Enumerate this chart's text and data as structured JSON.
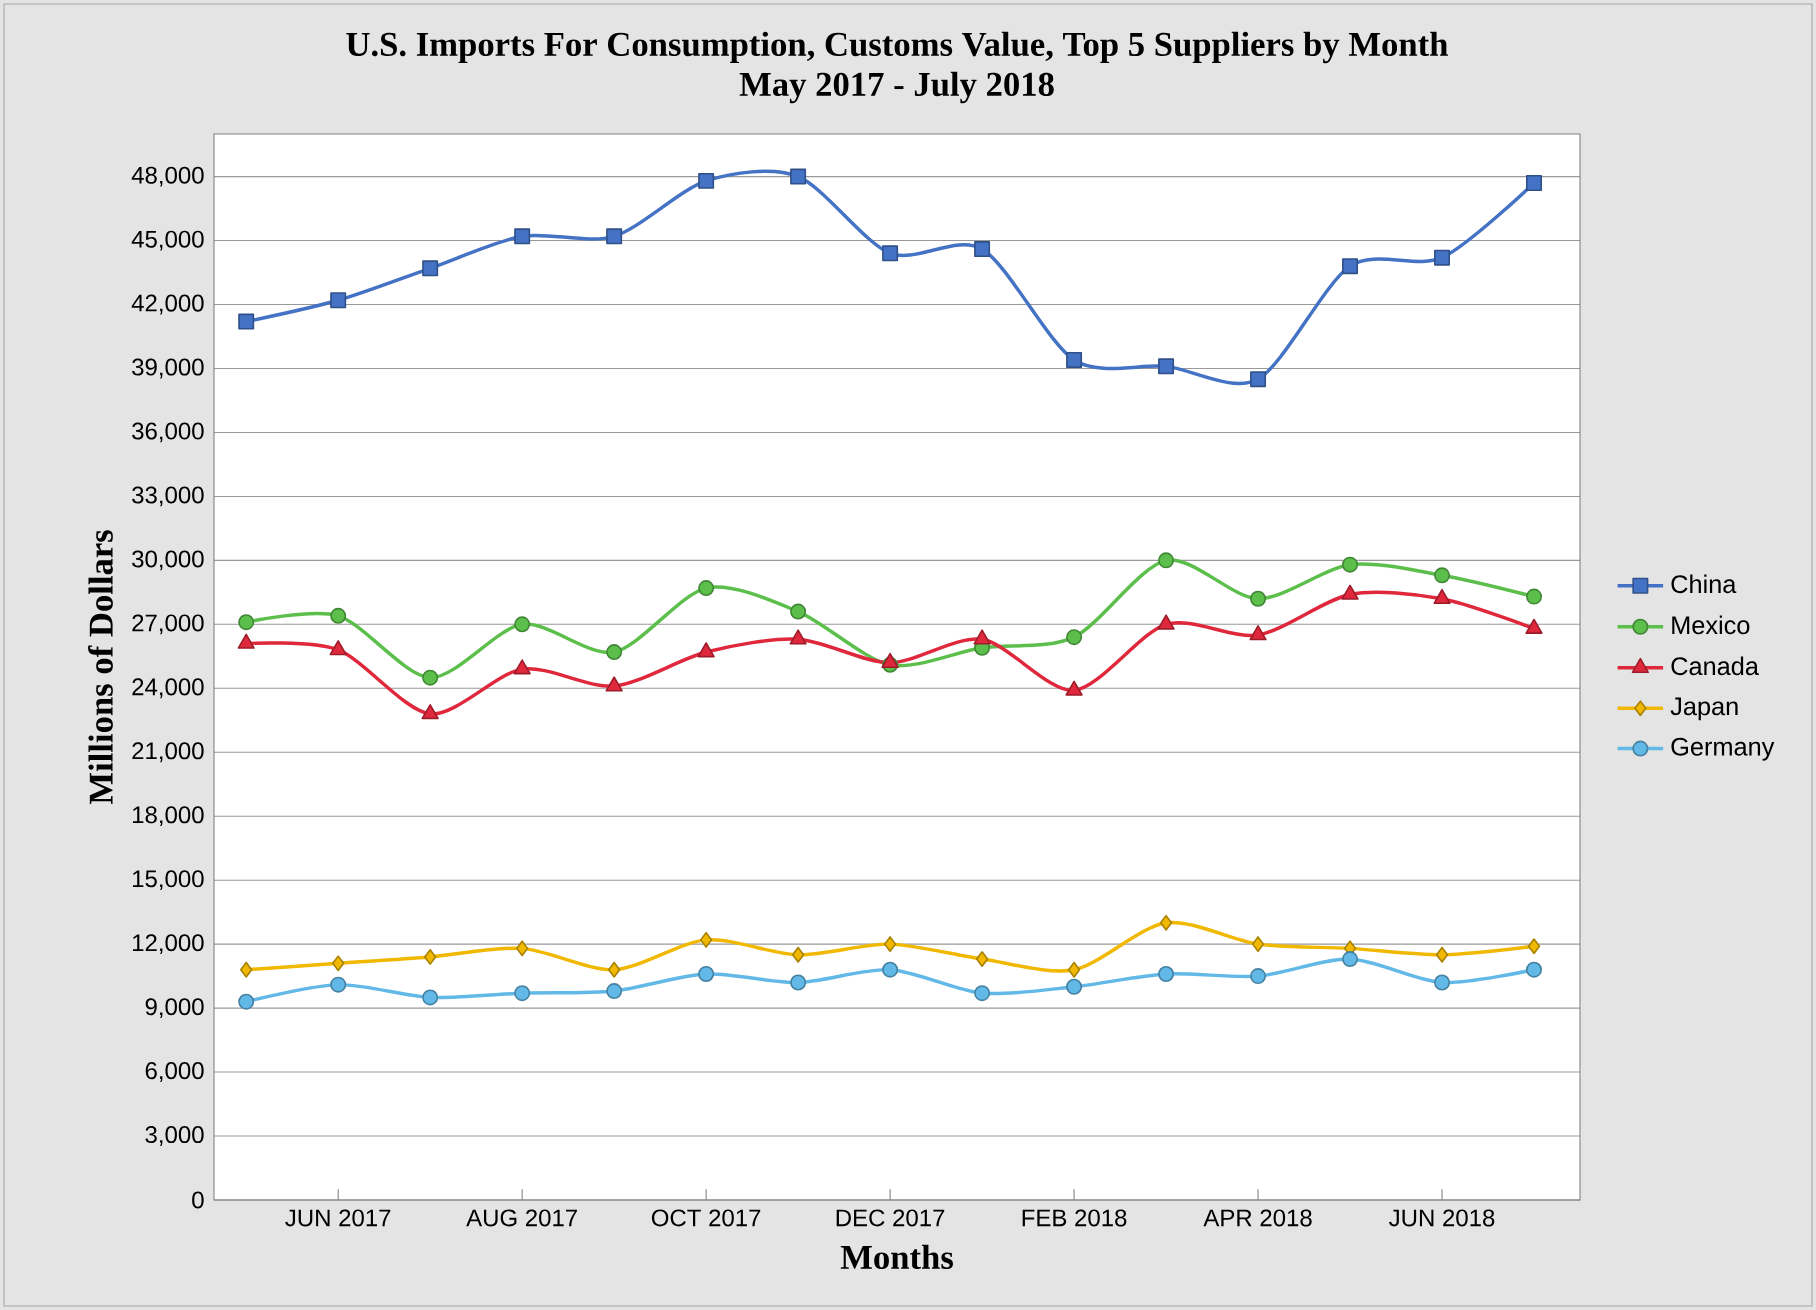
{
  "chart_data": {
    "type": "line",
    "title": "U.S. Imports For Consumption, Customs Value, Top 5 Suppliers by Month",
    "subtitle": "May 2017 - July 2018",
    "xlabel": "Months",
    "ylabel": "Millions of Dollars",
    "categories": [
      null,
      "JUN 2017",
      null,
      "AUG 2017",
      null,
      "OCT 2017",
      null,
      "DEC 2017",
      null,
      "FEB 2018",
      null,
      "APR 2018",
      null,
      "JUN 2018",
      null
    ],
    "ylim": [
      0,
      50000
    ],
    "yticks": [
      0,
      {
        "value": 3000,
        "label": "3,000"
      },
      {
        "value": 6000,
        "label": "6,000"
      },
      {
        "value": 9000,
        "label": "9,000"
      },
      {
        "value": 12000,
        "label": "12,000"
      },
      {
        "value": 15000,
        "label": "15,000"
      },
      {
        "value": 18000,
        "label": "18,000"
      },
      {
        "value": 21000,
        "label": "21,000"
      },
      {
        "value": 24000,
        "label": "24,000"
      },
      {
        "value": 27000,
        "label": "27,000"
      },
      {
        "value": 30000,
        "label": "30,000"
      },
      {
        "value": 33000,
        "label": "33,000"
      },
      {
        "value": 36000,
        "label": "36,000"
      },
      {
        "value": 39000,
        "label": "39,000"
      },
      {
        "value": 42000,
        "label": "42,000"
      },
      {
        "value": 45000,
        "label": "45,000"
      },
      {
        "value": 48000,
        "label": "48,000"
      }
    ],
    "grid": "y",
    "legend": "right",
    "series": [
      {
        "name": "China",
        "color": "#4472c4",
        "marker": "square",
        "values": [
          41200,
          42200,
          43700,
          45200,
          45200,
          47800,
          48000,
          44400,
          44600,
          39400,
          39100,
          38500,
          43800,
          44200,
          47700
        ]
      },
      {
        "name": "Mexico",
        "color": "#5cbf4c",
        "marker": "circle",
        "values": [
          27100,
          27400,
          24500,
          27000,
          25700,
          28700,
          27600,
          25100,
          25900,
          26400,
          30000,
          28200,
          29800,
          29300,
          28300
        ]
      },
      {
        "name": "Canada",
        "color": "#e0283c",
        "marker": "triangle",
        "values": [
          26100,
          25800,
          22800,
          24900,
          24100,
          25700,
          26300,
          25200,
          26300,
          23900,
          27000,
          26500,
          28400,
          28200,
          26800
        ]
      },
      {
        "name": "Japan",
        "color": "#f0b800",
        "marker": "diamond",
        "values": [
          10800,
          11100,
          11400,
          11800,
          10800,
          12200,
          11500,
          12000,
          11300,
          10800,
          13000,
          12000,
          11800,
          11500,
          11900
        ]
      },
      {
        "name": "Germany",
        "color": "#62b8e6",
        "marker": "circle",
        "values": [
          9300,
          10100,
          9500,
          9700,
          9800,
          10600,
          10200,
          10800,
          9700,
          10000,
          10600,
          10500,
          11300,
          10200,
          10800
        ]
      }
    ]
  }
}
